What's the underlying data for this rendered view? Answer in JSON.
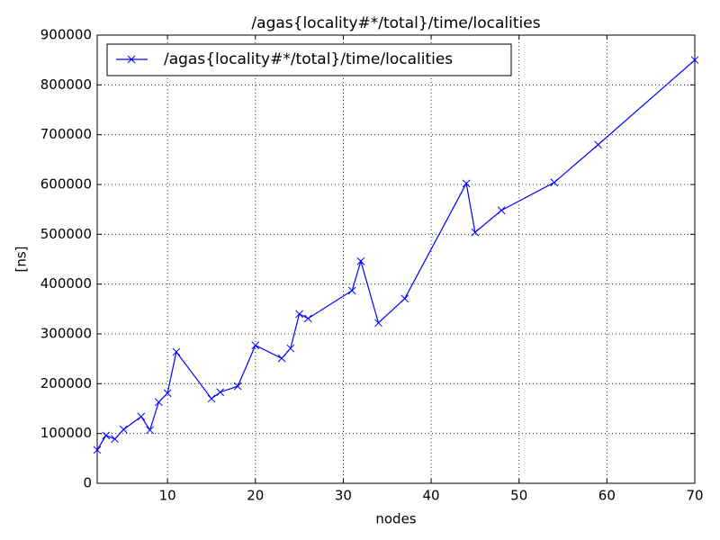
{
  "chart_data": {
    "type": "line",
    "title": "/agas{locality#*/total}/time/localities",
    "x_label": "nodes",
    "y_label": "[ns]",
    "x": [
      2,
      3,
      4,
      5,
      7,
      8,
      9,
      10,
      11,
      15,
      16,
      18,
      20,
      23,
      24,
      25,
      26,
      31,
      32,
      34,
      37,
      44,
      45,
      48,
      54,
      59,
      70
    ],
    "series": [
      {
        "name": "/agas{locality#*/total}/time/localities",
        "color": "#0000ff",
        "marker": "x",
        "values": [
          67000,
          96000,
          89000,
          108000,
          134000,
          107000,
          163000,
          181000,
          264000,
          170000,
          183000,
          195000,
          277000,
          251000,
          271000,
          340000,
          331000,
          387000,
          446000,
          322000,
          371000,
          602000,
          504000,
          548000,
          604000,
          680000,
          850000
        ]
      }
    ],
    "xlim": [
      2,
      70
    ],
    "xticks": [
      10,
      20,
      30,
      40,
      50,
      60,
      70
    ],
    "ylim": [
      0,
      900000
    ],
    "yticks": [
      0,
      100000,
      200000,
      300000,
      400000,
      500000,
      600000,
      700000,
      800000,
      900000
    ],
    "grid": true,
    "legend": "upper left"
  }
}
